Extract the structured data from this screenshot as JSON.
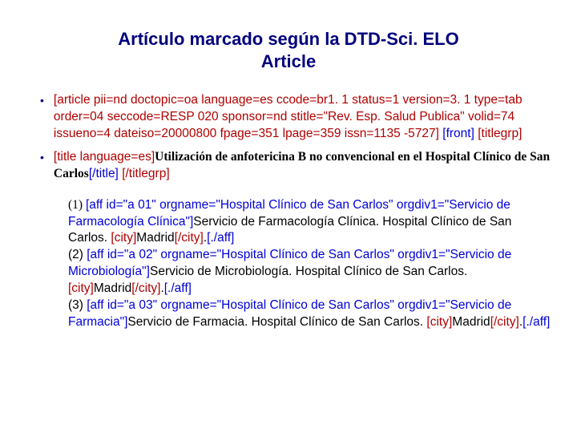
{
  "title_line1": "Artículo marcado según la DTD-Sci. ELO",
  "title_line2": "Article",
  "item1": {
    "tag_article": "[article pii=nd doctopic=oa language=es ccode=br1. 1 status=1 version=3. 1 type=tab order=04 seccode=RESP 020 sponsor=nd stitle=\"Rev. Esp. Salud Publica\" volid=74 issueno=4 dateiso=20000800 fpage=351 lpage=359 issn=1135 -5727]",
    "tag_front": "[front]",
    "tag_titlegrp": "[titlegrp]"
  },
  "item2": {
    "tag_title_open": "[title language=es]",
    "content": "Utilización de anfotericina B no convencional en el Hospital Clínico de San Carlos",
    "tag_title_close": "[/title]",
    "tag_titlegrp_close": "[/titlegrp]"
  },
  "aff1": {
    "num": "(1) ",
    "open": "[aff id=\"a 01\" orgname=\"Hospital Clínico de San Carlos\" orgdiv1=\"Servicio de Farmacología Clínica\"]",
    "text1": "Servicio de Farmacología Clínica. Hospital Clínico de San Carlos. ",
    "city_open": "[city]",
    "city_text": "Madrid",
    "city_close": "[/city]",
    "dot": ".",
    "close": "[./aff]"
  },
  "aff2": {
    "num": "(2) ",
    "open": "[aff id=\"a 02\" orgname=\"Hospital Clínico de San Carlos\" orgdiv1=\"Servicio de Microbiología\"]",
    "text1": "Servicio de Microbiología. Hospital Clínico de San Carlos. ",
    "city_open": "[city]",
    "city_text": "Madrid",
    "city_close": "[/city]",
    "dot": ".",
    "close": "[./aff]"
  },
  "aff3": {
    "num": "(3) ",
    "open": "[aff id=\"a 03\" orgname=\"Hospital Clínico de San Carlos\" orgdiv1=\"Servicio de Farmacia\"]",
    "text1": "Servicio de Farmacia. Hospital Clínico de San Carlos. ",
    "city_open": "[city]",
    "city_text": "Madrid",
    "city_close": "[/city]",
    "dot": ".",
    "close": "[./aff]"
  }
}
